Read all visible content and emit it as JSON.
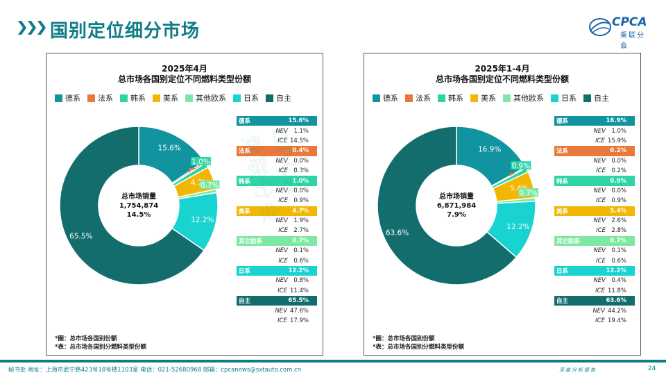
{
  "page": {
    "title": "国别定位细分市场",
    "logo_text": "CPCA",
    "logo_sub": "乘联分会",
    "watermark": "CPCA 乘联分会",
    "footer_text": "秘书处  地址：上海市武宁路423号18号楼1103室  电话：021-52680968  邮箱：cpcanews@sxtauto.com.cn",
    "footer_right": "深度分析报告",
    "page_number": "24"
  },
  "colors": {
    "德系": "#1193a0",
    "法系": "#e8793a",
    "韩系": "#2ed4a6",
    "美系": "#f2b705",
    "其他欧系": "#7ee8a2",
    "日系": "#18d3cf",
    "自主": "#136d6d"
  },
  "chart_data": [
    {
      "type": "pie",
      "title": "2025年4月",
      "subtitle": "总市场各国别定位不同燃料类型份额",
      "legend": [
        "德系",
        "法系",
        "韩系",
        "美系",
        "其他欧系",
        "日系",
        "自主"
      ],
      "categories": [
        "德系",
        "法系",
        "韩系",
        "美系",
        "其他欧系",
        "日系",
        "自主"
      ],
      "values": [
        15.6,
        0.4,
        1.0,
        4.7,
        0.7,
        12.2,
        65.5
      ],
      "labels": [
        "15.6%",
        "0.4%",
        "1.0%",
        "4.7%",
        "0.7%",
        "12.2%",
        "65.5%"
      ],
      "center": {
        "label": "总市场销量",
        "volume": "1,754,874",
        "growth": "14.5%"
      },
      "table": [
        {
          "name": "德系",
          "total": "15.6%",
          "nev": "1.1%",
          "ice": "14.5%"
        },
        {
          "name": "法系",
          "total": "0.4%",
          "nev": "0.0%",
          "ice": "0.3%"
        },
        {
          "name": "韩系",
          "total": "1.0%",
          "nev": "0.0%",
          "ice": "0.9%"
        },
        {
          "name": "美系",
          "total": "4.7%",
          "nev": "1.9%",
          "ice": "2.7%"
        },
        {
          "name": "其它欧系",
          "total": "0.7%",
          "nev": "0.1%",
          "ice": "0.6%"
        },
        {
          "name": "日系",
          "total": "12.2%",
          "nev": "0.8%",
          "ice": "11.4%"
        },
        {
          "name": "自主",
          "total": "65.5%",
          "nev": "47.6%",
          "ice": "17.9%"
        }
      ],
      "nev_label": "NEV",
      "ice_label": "ICE",
      "notes": [
        "*圈：总市场各国别份额",
        "*表：总市场各国别分燃料类型份额"
      ]
    },
    {
      "type": "pie",
      "title": "2025年1-4月",
      "subtitle": "总市场各国别定位不同燃料类型份额",
      "legend": [
        "德系",
        "法系",
        "韩系",
        "美系",
        "其他欧系",
        "日系",
        "自主"
      ],
      "categories": [
        "德系",
        "法系",
        "韩系",
        "美系",
        "其他欧系",
        "日系",
        "自主"
      ],
      "values": [
        16.9,
        0.2,
        0.9,
        5.4,
        0.7,
        12.2,
        63.6
      ],
      "labels": [
        "16.9%",
        "0.2%",
        "0.9%",
        "5.4%",
        "0.7%",
        "12.2%",
        "63.6%"
      ],
      "center": {
        "label": "总市场销量",
        "volume": "6,871,984",
        "growth": "7.9%"
      },
      "table": [
        {
          "name": "德系",
          "total": "16.9%",
          "nev": "1.0%",
          "ice": "15.9%"
        },
        {
          "name": "法系",
          "total": "0.2%",
          "nev": "0.0%",
          "ice": "0.2%"
        },
        {
          "name": "韩系",
          "total": "0.9%",
          "nev": "0.0%",
          "ice": "0.9%"
        },
        {
          "name": "美系",
          "total": "5.4%",
          "nev": "2.6%",
          "ice": "2.8%"
        },
        {
          "name": "其它欧系",
          "total": "0.7%",
          "nev": "0.1%",
          "ice": "0.6%"
        },
        {
          "name": "日系",
          "total": "12.2%",
          "nev": "0.4%",
          "ice": "11.8%"
        },
        {
          "name": "自主",
          "total": "63.6%",
          "nev": "44.2%",
          "ice": "19.4%"
        }
      ],
      "nev_label": "NEV",
      "ice_label": "ICE",
      "notes": [
        "*圈：总市场各国别份额",
        "*表：总市场各国别分燃料类型份额"
      ]
    }
  ]
}
